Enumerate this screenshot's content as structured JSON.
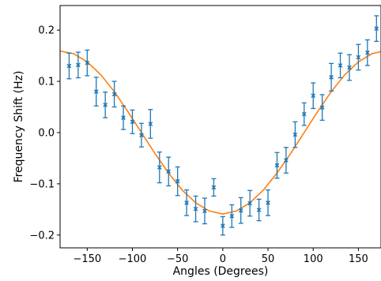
{
  "chart_data": {
    "type": "scatter",
    "xlabel": "Angles (Degrees)",
    "ylabel": "Frequency Shift (Hz)",
    "xlim": [
      -180,
      175
    ],
    "ylim": [
      -0.225,
      0.248
    ],
    "grid": false,
    "x_ticks": [
      -150,
      -100,
      -50,
      0,
      50,
      100,
      150
    ],
    "x_tick_labels": [
      "−150",
      "−100",
      "−50",
      "0",
      "50",
      "100",
      "150"
    ],
    "y_ticks": [
      -0.2,
      -0.1,
      0.0,
      0.1,
      0.2
    ],
    "y_tick_labels": [
      "−0.2",
      "−0.1",
      "0.0",
      "0.1",
      "0.2"
    ],
    "colors": {
      "points": "#1f77b4",
      "fit": "#ff7f0e"
    },
    "series": [
      {
        "kind": "errorbar",
        "x": [
          -170,
          -160,
          -150,
          -140,
          -130,
          -120,
          -110,
          -100,
          -90,
          -80,
          -70,
          -60,
          -50,
          -40,
          -30,
          -20,
          -10,
          0,
          10,
          20,
          30,
          40,
          50,
          60,
          70,
          80,
          90,
          100,
          110,
          120,
          130,
          140,
          150,
          160,
          170
        ],
        "y": [
          0.13,
          0.132,
          0.136,
          0.08,
          0.054,
          0.075,
          0.029,
          0.021,
          -0.005,
          0.017,
          -0.068,
          -0.076,
          -0.095,
          -0.137,
          -0.149,
          -0.153,
          -0.107,
          -0.182,
          -0.163,
          -0.152,
          -0.138,
          -0.151,
          -0.137,
          -0.064,
          -0.054,
          -0.004,
          0.036,
          0.072,
          0.049,
          0.108,
          0.131,
          0.127,
          0.147,
          0.156,
          0.203
        ],
        "yerr": [
          0.025,
          0.025,
          0.025,
          0.028,
          0.025,
          0.025,
          0.023,
          0.023,
          0.023,
          0.028,
          0.03,
          0.028,
          0.028,
          0.025,
          0.025,
          0.025,
          0.017,
          0.018,
          0.022,
          0.025,
          0.025,
          0.021,
          0.025,
          0.025,
          0.025,
          0.025,
          0.022,
          0.025,
          0.025,
          0.027,
          0.024,
          0.025,
          0.025,
          0.025,
          0.025
        ]
      },
      {
        "kind": "fit",
        "x": [
          -180,
          -165,
          -150,
          -135,
          -120,
          -105,
          -90,
          -75,
          -60,
          -45,
          -30,
          -15,
          0,
          15,
          30,
          45,
          60,
          75,
          90,
          105,
          120,
          135,
          150,
          165,
          175
        ],
        "y": [
          0.159,
          0.154,
          0.138,
          0.113,
          0.08,
          0.041,
          0.0,
          -0.041,
          -0.079,
          -0.112,
          -0.137,
          -0.153,
          -0.159,
          -0.153,
          -0.137,
          -0.112,
          -0.079,
          -0.041,
          0.0,
          0.041,
          0.08,
          0.113,
          0.138,
          0.154,
          0.158
        ]
      }
    ]
  }
}
